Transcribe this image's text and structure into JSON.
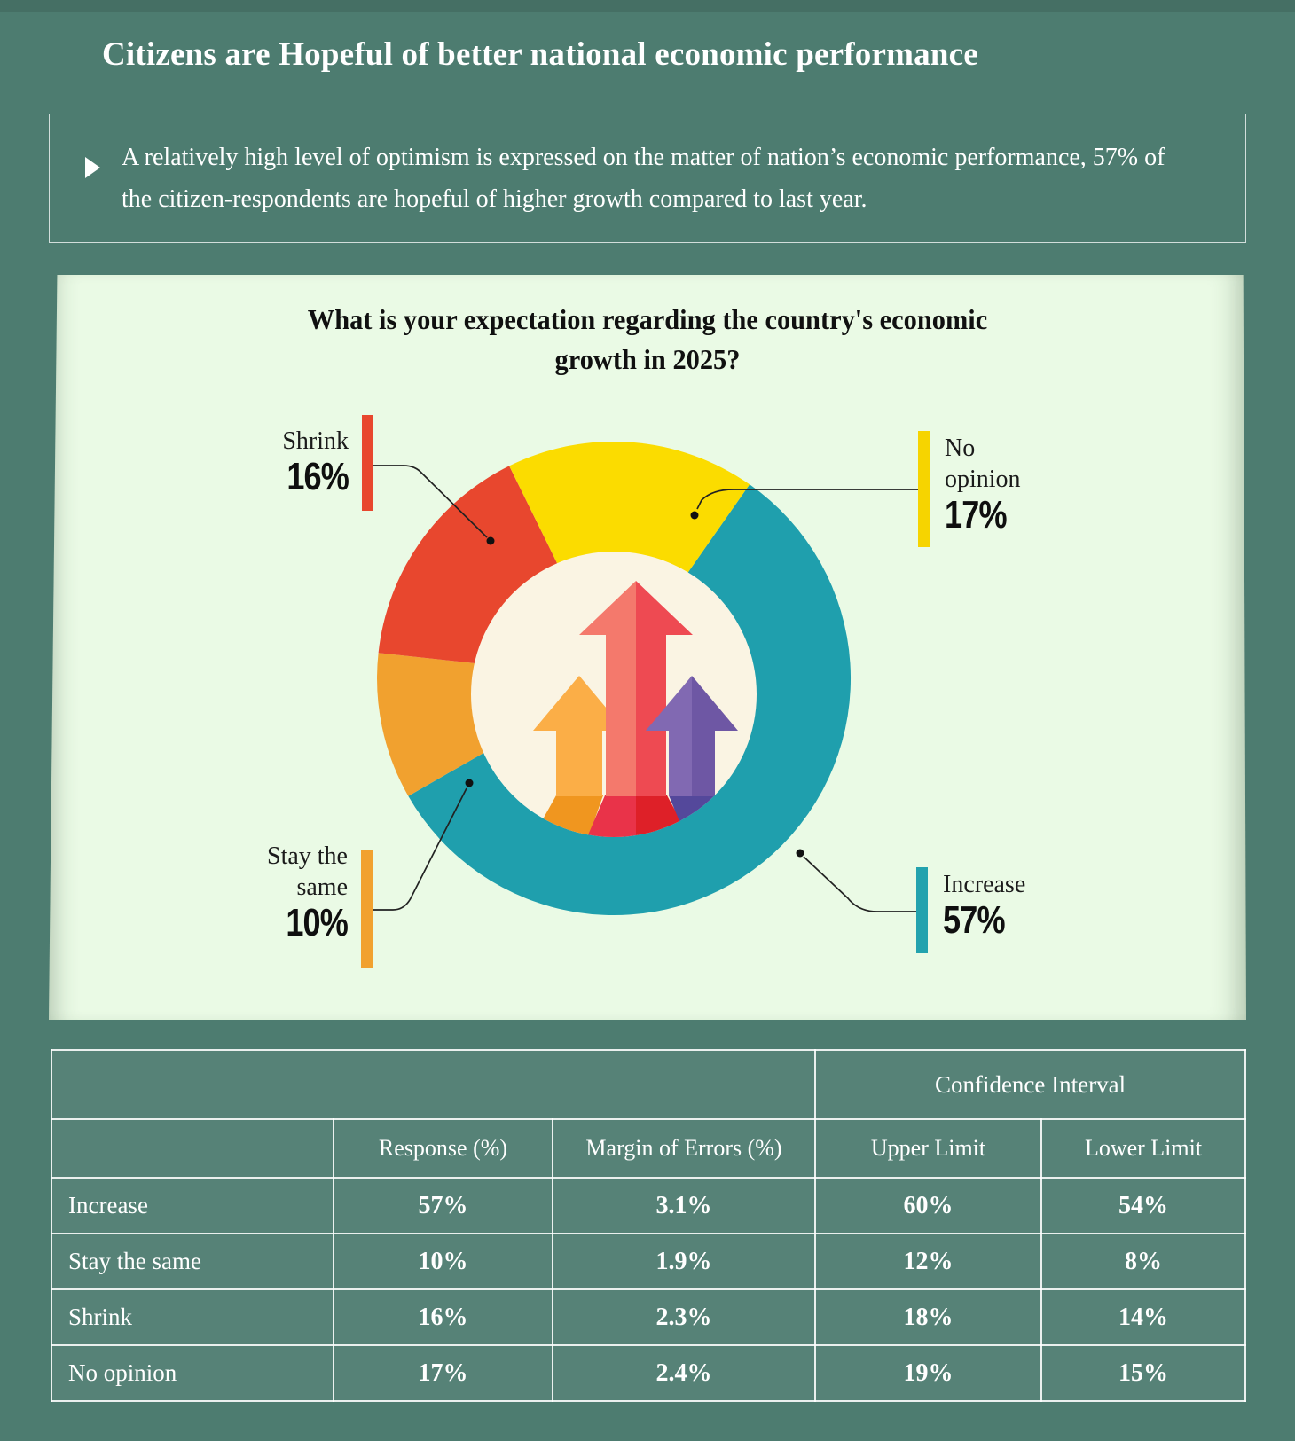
{
  "page": {
    "title": "Citizens are Hopeful of better national economic performance",
    "background_color": "#4d7c70"
  },
  "intro": {
    "text": "A relatively high level of optimism is expressed on the matter of nation’s economic performance, 57% of the citizen-respondents are hopeful of higher growth compared to last year."
  },
  "chart_data": {
    "type": "pie",
    "variant": "donut",
    "title": "What is your expectation regarding the country's economic growth in 2025?",
    "segments": [
      {
        "label": "Increase",
        "value": 57,
        "color": "#1f9fad"
      },
      {
        "label": "Stay the same",
        "value": 10,
        "color": "#f1a12f"
      },
      {
        "label": "Shrink",
        "value": 16,
        "color": "#e8472e"
      },
      {
        "label": "No opinion",
        "value": 17,
        "color": "#fbdc00"
      }
    ],
    "layout": {
      "start_angle_deg": 35,
      "direction": "clockwise",
      "hole_color": "#faf4e3",
      "legend": "callout-labels-with-leader-lines"
    },
    "center_icon": "three-upward-growth-arrows"
  },
  "callouts": {
    "shrink": {
      "label": "Shrink",
      "value": "16%",
      "color": "#e8472e"
    },
    "no_opinion": {
      "label": "No opinion",
      "value": "17%",
      "color": "#f6d400"
    },
    "stay_same": {
      "label": "Stay the same",
      "value": "10%",
      "color": "#f1a12f"
    },
    "increase": {
      "label": "Increase",
      "value": "57%",
      "color": "#23a2ae"
    }
  },
  "table": {
    "group_header": "Confidence Interval",
    "columns": [
      "",
      "Response (%)",
      "Margin of Errors (%)",
      "Upper Limit",
      "Lower Limit"
    ],
    "rows": [
      {
        "label": "Increase",
        "response": "57%",
        "margin_of_error": "3.1%",
        "upper_limit": "60%",
        "lower_limit": "54%"
      },
      {
        "label": "Stay the same",
        "response": "10%",
        "margin_of_error": "1.9%",
        "upper_limit": "12%",
        "lower_limit": "8%"
      },
      {
        "label": "Shrink",
        "response": "16%",
        "margin_of_error": "2.3%",
        "upper_limit": "18%",
        "lower_limit": "14%"
      },
      {
        "label": "No opinion",
        "response": "17%",
        "margin_of_error": "2.4%",
        "upper_limit": "19%",
        "lower_limit": "15%"
      }
    ]
  }
}
